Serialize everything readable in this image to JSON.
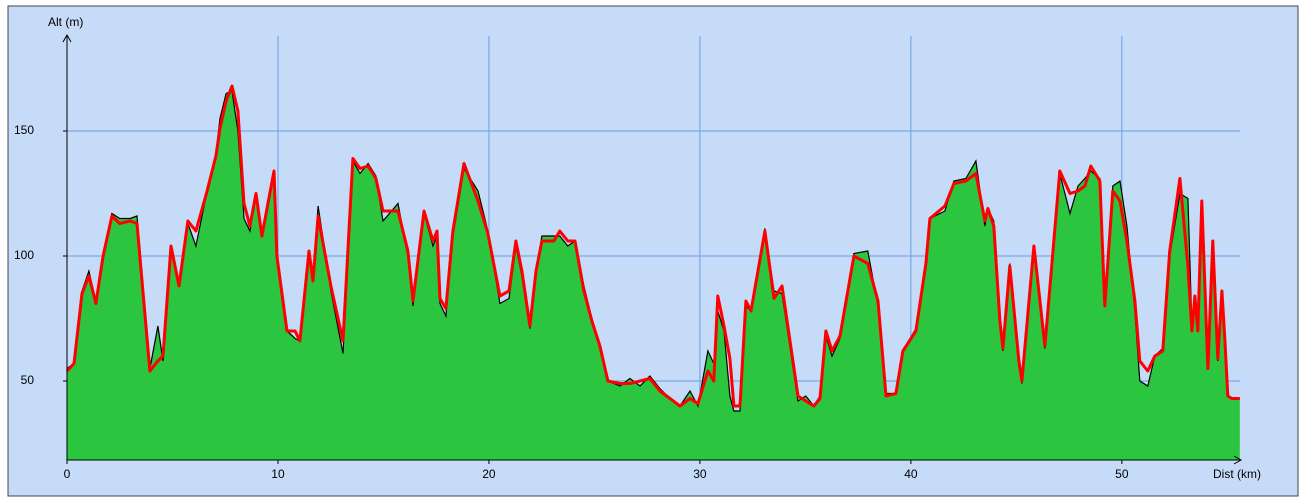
{
  "chart_data": {
    "type": "area",
    "xlabel": "Dist (km)",
    "ylabel": "Alt (m)",
    "x": [
      0,
      0.33,
      0.71,
      1.04,
      1.37,
      1.71,
      2.13,
      2.5,
      2.99,
      3.32,
      3.6,
      3.93,
      4.31,
      4.55,
      4.93,
      5.31,
      5.73,
      6.11,
      6.64,
      7.06,
      7.25,
      7.54,
      7.82,
      8.1,
      8.39,
      8.67,
      8.96,
      9.24,
      9.81,
      9.95,
      10.43,
      10.81,
      11.04,
      11.47,
      11.66,
      11.9,
      12.51,
      13.08,
      13.55,
      13.89,
      14.27,
      14.64,
      14.98,
      15.69,
      16.16,
      16.4,
      16.92,
      17.35,
      17.54,
      17.68,
      17.96,
      18.29,
      18.82,
      19.48,
      19.95,
      20.52,
      20.95,
      21.28,
      21.56,
      21.94,
      22.23,
      22.51,
      23.08,
      23.36,
      23.74,
      24.08,
      24.5,
      24.88,
      25.26,
      25.64,
      26.21,
      26.68,
      27.16,
      27.63,
      28.1,
      28.58,
      29.05,
      29.53,
      29.91,
      30.38,
      30.66,
      30.85,
      31.14,
      31.42,
      31.61,
      31.9,
      32.18,
      32.42,
      33.08,
      33.51,
      33.89,
      34.65,
      35.02,
      35.4,
      35.69,
      35.97,
      36.26,
      36.64,
      37.3,
      37.96,
      38.44,
      38.82,
      39.29,
      39.62,
      40.24,
      40.71,
      40.9,
      41.61,
      42.04,
      42.61,
      43.08,
      43.51,
      43.65,
      43.93,
      44.22,
      44.36,
      44.69,
      45.12,
      45.26,
      45.83,
      46.35,
      47.06,
      47.54,
      47.92,
      48.25,
      48.53,
      48.96,
      49.19,
      49.57,
      49.91,
      50.24,
      50.62,
      50.85,
      51.23,
      51.56,
      51.94,
      52.27,
      52.75,
      53.13,
      53.32,
      53.46,
      53.6,
      53.79,
      54.08,
      54.31,
      54.55,
      54.74,
      54.88,
      55.02,
      55.21,
      55.59
    ],
    "series": [
      {
        "color": "#2bc53f",
        "line_color": "#000000",
        "fill": true,
        "values": [
          55,
          57,
          86,
          94,
          82,
          101,
          117,
          115,
          115,
          116,
          86,
          55,
          72,
          58,
          104,
          88,
          113,
          104,
          126,
          141,
          155,
          165,
          166,
          150,
          115,
          110,
          124,
          108,
          133,
          100,
          70,
          67,
          66,
          101,
          92,
          120,
          86,
          61,
          138,
          133,
          137,
          132,
          114,
          121,
          100,
          80,
          117,
          104,
          108,
          81,
          76,
          108,
          135,
          126,
          110,
          81,
          83,
          104,
          92,
          71,
          94,
          108,
          108,
          108,
          104,
          106,
          88,
          75,
          63,
          50,
          48,
          51,
          48,
          52,
          47,
          43,
          40,
          46,
          40,
          62,
          57,
          78,
          70,
          44,
          38,
          38,
          80,
          78,
          111,
          86,
          85,
          42,
          44,
          40,
          44,
          68,
          60,
          67,
          101,
          102,
          80,
          45,
          45,
          62,
          71,
          96,
          115,
          118,
          130,
          131,
          138,
          112,
          119,
          114,
          72,
          62,
          97,
          56,
          49,
          104,
          63,
          133,
          117,
          128,
          131,
          134,
          131,
          82,
          128,
          130,
          112,
          78,
          50,
          48,
          60,
          63,
          100,
          125,
          123,
          72,
          82,
          70,
          120,
          57,
          104,
          58,
          82,
          65,
          44,
          43,
          43
        ]
      },
      {
        "color": "#ff0000",
        "fill": false,
        "values": [
          54,
          57,
          85,
          92,
          81,
          100,
          116,
          113,
          114,
          113,
          86,
          54,
          58,
          60,
          104,
          88,
          114,
          110,
          126,
          140,
          151,
          162,
          168,
          158,
          121,
          112,
          125,
          108,
          134,
          100,
          70,
          70,
          66,
          102,
          90,
          116,
          88,
          66,
          139,
          135,
          136,
          131,
          118,
          118,
          102,
          82,
          118,
          106,
          110,
          83,
          79,
          110,
          137,
          122,
          109,
          84,
          86,
          106,
          94,
          72,
          94,
          106,
          106,
          110,
          106,
          106,
          86,
          74,
          64,
          50,
          49,
          49,
          50,
          51,
          46,
          43,
          40,
          43,
          41,
          54,
          50,
          84,
          72,
          59,
          40,
          40,
          82,
          78,
          110,
          83,
          88,
          44,
          42,
          40,
          43,
          70,
          62,
          68,
          100,
          97,
          82,
          44,
          45,
          62,
          70,
          97,
          115,
          120,
          129,
          130,
          133,
          114,
          119,
          112,
          74,
          63,
          96,
          58,
          50,
          104,
          64,
          134,
          125,
          126,
          128,
          136,
          130,
          80,
          126,
          122,
          106,
          82,
          58,
          54,
          60,
          62,
          102,
          131,
          96,
          70,
          84,
          70,
          122,
          55,
          106,
          59,
          86,
          67,
          44,
          43,
          43
        ]
      }
    ],
    "xlim": [
      0,
      55.6
    ],
    "ylim": [
      18.4,
      188
    ],
    "xticks": [
      0,
      10,
      20,
      30,
      40,
      50
    ],
    "yticks": [
      50,
      100,
      150
    ],
    "grid": true,
    "grid_color": "#6a9ce8",
    "background": "#c6dbf8"
  }
}
